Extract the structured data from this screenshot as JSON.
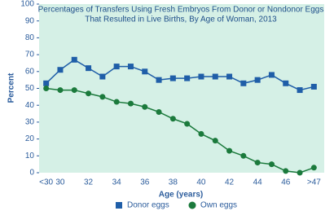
{
  "chart_data": {
    "type": "line",
    "title": [
      "Percentages of Transfers Using Fresh Embryos From Donor or Nondonor Eggs",
      "That Resulted in Live Births, By Age of Woman, 2013"
    ],
    "x_label": "Age (years)",
    "y_label": "Percent",
    "categories": [
      "<30",
      "30",
      null,
      "32",
      null,
      "34",
      null,
      "36",
      null,
      "38",
      null,
      "40",
      null,
      "42",
      null,
      "44",
      null,
      "46",
      null,
      ">47"
    ],
    "series": [
      {
        "name": "Donor eggs",
        "color": "#1f5ea8",
        "marker": "square",
        "values": [
          53,
          61,
          67,
          62,
          57,
          63,
          63,
          60,
          55,
          56,
          56,
          57,
          57,
          57,
          53,
          55,
          58,
          53,
          49,
          51
        ]
      },
      {
        "name": "Own eggs",
        "color": "#1b7a3c",
        "marker": "circle",
        "values": [
          50,
          49,
          49,
          47,
          45,
          42,
          41,
          39,
          36,
          32,
          29,
          23,
          19,
          13,
          10,
          6,
          5,
          1,
          0,
          3
        ]
      }
    ],
    "ylim": [
      0,
      100
    ],
    "yticks": [
      0,
      10,
      20,
      30,
      40,
      50,
      60,
      70,
      80,
      90,
      100
    ],
    "grid": false
  }
}
